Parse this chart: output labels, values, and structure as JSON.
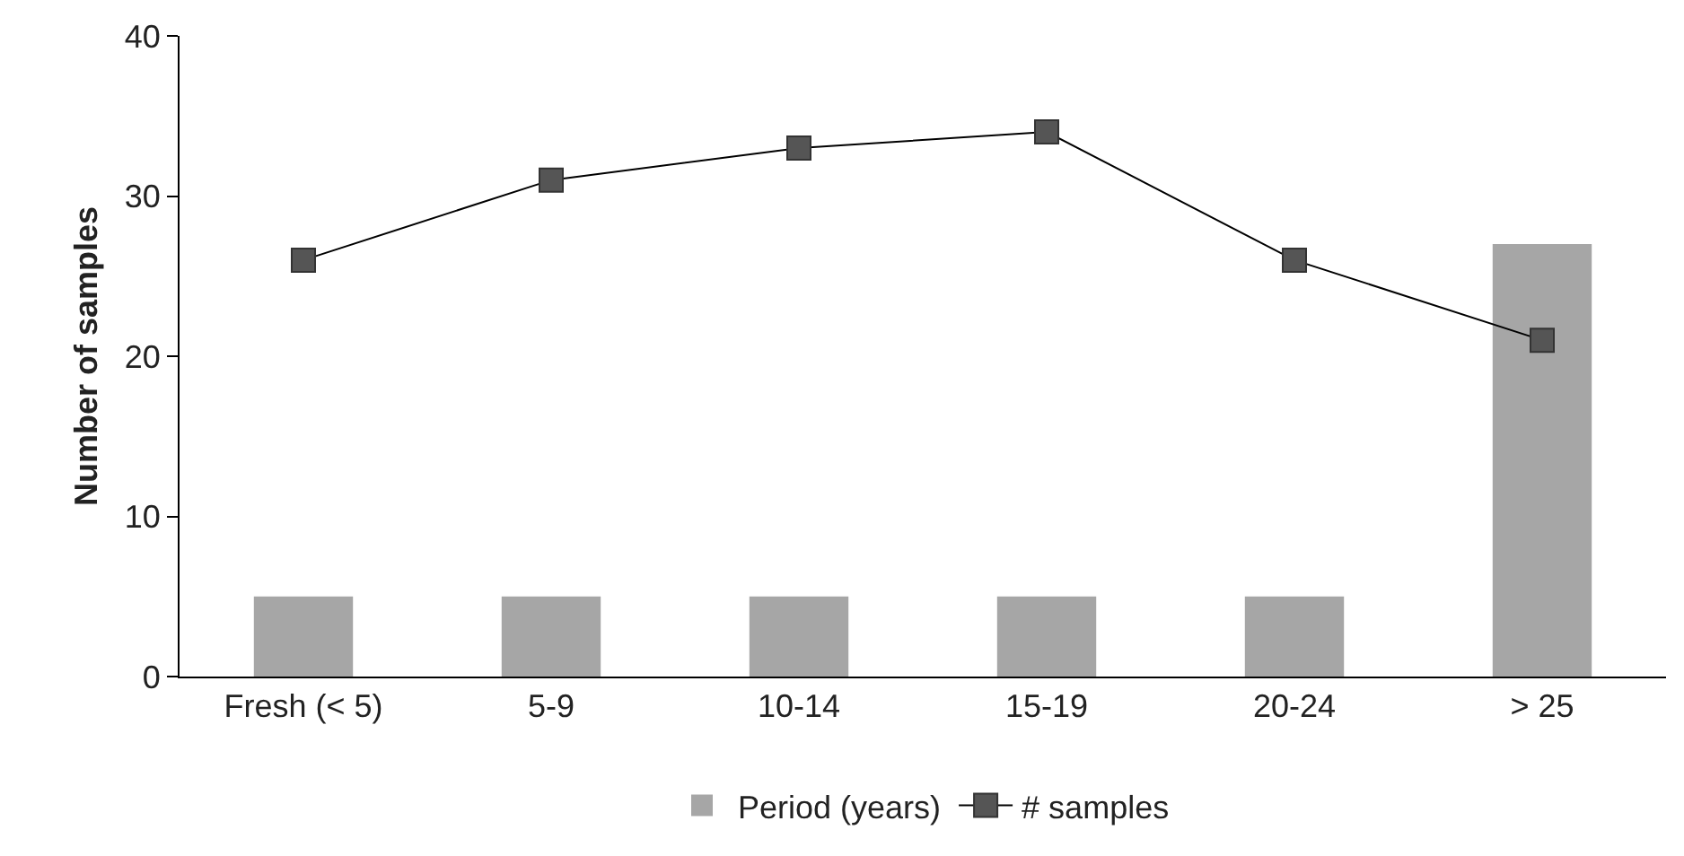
{
  "chart_data": {
    "type": "bar",
    "ylabel": "Number of samples",
    "categories": [
      "Fresh (< 5)",
      "5-9",
      "10-14",
      "15-19",
      "20-24",
      "> 25"
    ],
    "series": [
      {
        "name": "Period (years)",
        "color": "#a6a6a6",
        "values": [
          5,
          5,
          5,
          5,
          5,
          27
        ]
      },
      {
        "name": "# samples",
        "type": "line",
        "color": "#555555",
        "values": [
          26,
          31,
          33,
          34,
          26,
          21
        ]
      }
    ],
    "ylim": [
      0,
      40
    ],
    "yticks": [
      0,
      10,
      20,
      30,
      40
    ],
    "grid": false,
    "legend": "bottom",
    "marker": "square",
    "line_style": "solid"
  }
}
